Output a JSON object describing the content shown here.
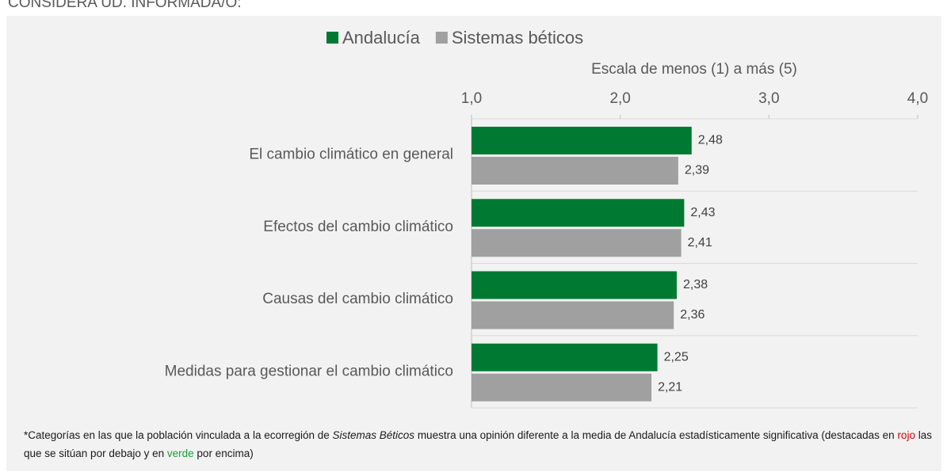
{
  "chart_data": {
    "type": "bar",
    "orientation": "horizontal",
    "subtitle": "CONSIDERA UD. INFORMADA/O:",
    "xlabel": "Escala de menos (1) a más (5)",
    "categories": [
      "El cambio climático en general",
      "Efectos del cambio climático",
      "Causas del cambio climático",
      "Medidas para gestionar el cambio climático"
    ],
    "series": [
      {
        "name": "Andalucía",
        "color": "#007a33",
        "values": [
          2.48,
          2.43,
          2.38,
          2.25
        ],
        "value_labels": [
          "2,48",
          "2,43",
          "2,38",
          "2,25"
        ]
      },
      {
        "name": "Sistemas béticos",
        "color": "#a0a0a0",
        "values": [
          2.39,
          2.41,
          2.36,
          2.21
        ],
        "value_labels": [
          "2,39",
          "2,41",
          "2,36",
          "2,21"
        ]
      }
    ],
    "xlim": [
      1,
      4
    ],
    "xticks": [
      {
        "value": 1,
        "label": "1,0"
      },
      {
        "value": 2,
        "label": "2,0"
      },
      {
        "value": 3,
        "label": "3,0"
      },
      {
        "value": 4,
        "label": "4,0"
      }
    ],
    "legend": "top"
  },
  "footnote": {
    "parts": [
      "*Categorías en las que la población vinculada a la ecorregión de ",
      "Sistemas Béticos",
      " muestra una opinión diferente a la media de Andalucía estadísticamente significativa (destacadas en ",
      "rojo",
      " las que se sitúan por debajo y en ",
      "verde",
      " por encima)"
    ]
  }
}
